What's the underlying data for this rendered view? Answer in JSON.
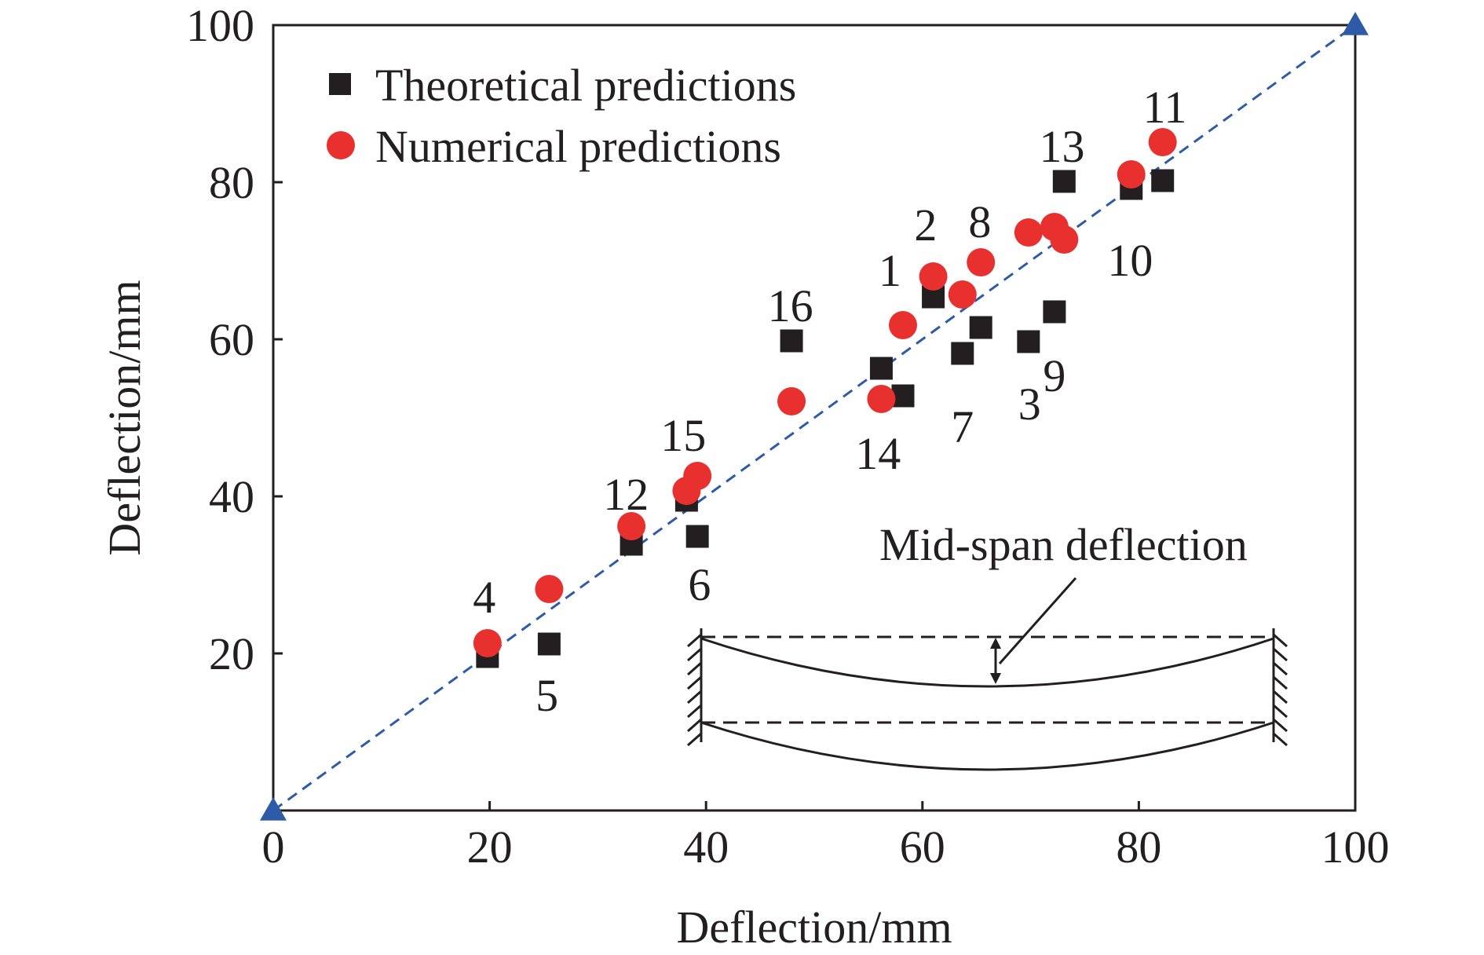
{
  "chart_data": {
    "type": "scatter",
    "xlabel": "Deflection/mm",
    "ylabel": "Deflection/mm",
    "xlim": [
      0,
      100
    ],
    "ylim": [
      0,
      100
    ],
    "xticks": [
      0,
      20,
      40,
      60,
      80,
      100
    ],
    "yticks": [
      20,
      40,
      60,
      80,
      100
    ],
    "grid": false,
    "legend_position": "top-left",
    "series": [
      {
        "name": "Theoretical predictions",
        "marker": "square",
        "color": "#231f20",
        "points": [
          {
            "x": 58.2,
            "y": 52.8
          },
          {
            "x": 61.0,
            "y": 65.4
          },
          {
            "x": 69.8,
            "y": 59.7
          },
          {
            "x": 19.8,
            "y": 19.6
          },
          {
            "x": 25.5,
            "y": 21.2
          },
          {
            "x": 39.2,
            "y": 34.9
          },
          {
            "x": 63.7,
            "y": 58.2
          },
          {
            "x": 65.4,
            "y": 61.5
          },
          {
            "x": 72.2,
            "y": 63.5
          },
          {
            "x": 79.3,
            "y": 79.2
          },
          {
            "x": 82.2,
            "y": 80.2
          },
          {
            "x": 33.1,
            "y": 33.9
          },
          {
            "x": 73.1,
            "y": 80.1
          },
          {
            "x": 56.2,
            "y": 56.3
          },
          {
            "x": 38.2,
            "y": 39.5
          },
          {
            "x": 47.9,
            "y": 59.8
          }
        ]
      },
      {
        "name": "Numerical predictions",
        "marker": "circle",
        "color": "#e8312f",
        "points": [
          {
            "x": 58.2,
            "y": 61.8
          },
          {
            "x": 61.0,
            "y": 68.0
          },
          {
            "x": 69.8,
            "y": 73.6
          },
          {
            "x": 19.8,
            "y": 21.3
          },
          {
            "x": 25.5,
            "y": 28.2
          },
          {
            "x": 39.2,
            "y": 42.6
          },
          {
            "x": 63.7,
            "y": 65.7
          },
          {
            "x": 65.4,
            "y": 69.8
          },
          {
            "x": 72.2,
            "y": 74.3
          },
          {
            "x": 79.3,
            "y": 81.0
          },
          {
            "x": 82.2,
            "y": 85.1
          },
          {
            "x": 33.1,
            "y": 36.2
          },
          {
            "x": 73.1,
            "y": 72.7
          },
          {
            "x": 56.2,
            "y": 52.4
          },
          {
            "x": 38.2,
            "y": 40.7
          },
          {
            "x": 47.9,
            "y": 52.1
          }
        ]
      }
    ],
    "reference_line": {
      "style": "dashed",
      "color": "#2e5aa8",
      "from": {
        "x": 0,
        "y": 0
      },
      "to": {
        "x": 100,
        "y": 100
      },
      "end_markers": "triangle"
    },
    "annotations": [
      {
        "text": "1",
        "x": 57.0,
        "y": 68.8
      },
      {
        "text": "2",
        "x": 60.3,
        "y": 74.6
      },
      {
        "text": "3",
        "x": 69.9,
        "y": 51.8
      },
      {
        "text": "4",
        "x": 19.5,
        "y": 27.2
      },
      {
        "text": "5",
        "x": 25.3,
        "y": 14.7
      },
      {
        "text": "6",
        "x": 39.4,
        "y": 28.8
      },
      {
        "text": "7",
        "x": 63.7,
        "y": 48.9
      },
      {
        "text": "8",
        "x": 65.3,
        "y": 75.0
      },
      {
        "text": "9",
        "x": 72.2,
        "y": 55.4
      },
      {
        "text": "10",
        "x": 79.2,
        "y": 70.1
      },
      {
        "text": "11",
        "x": 82.4,
        "y": 89.6
      },
      {
        "text": "12",
        "x": 32.6,
        "y": 40.3
      },
      {
        "text": "13",
        "x": 72.9,
        "y": 84.6
      },
      {
        "text": "14",
        "x": 55.9,
        "y": 45.5
      },
      {
        "text": "15",
        "x": 37.9,
        "y": 47.8
      },
      {
        "text": "16",
        "x": 47.8,
        "y": 64.3
      }
    ],
    "inset": {
      "label": "Mid-span deflection"
    }
  }
}
